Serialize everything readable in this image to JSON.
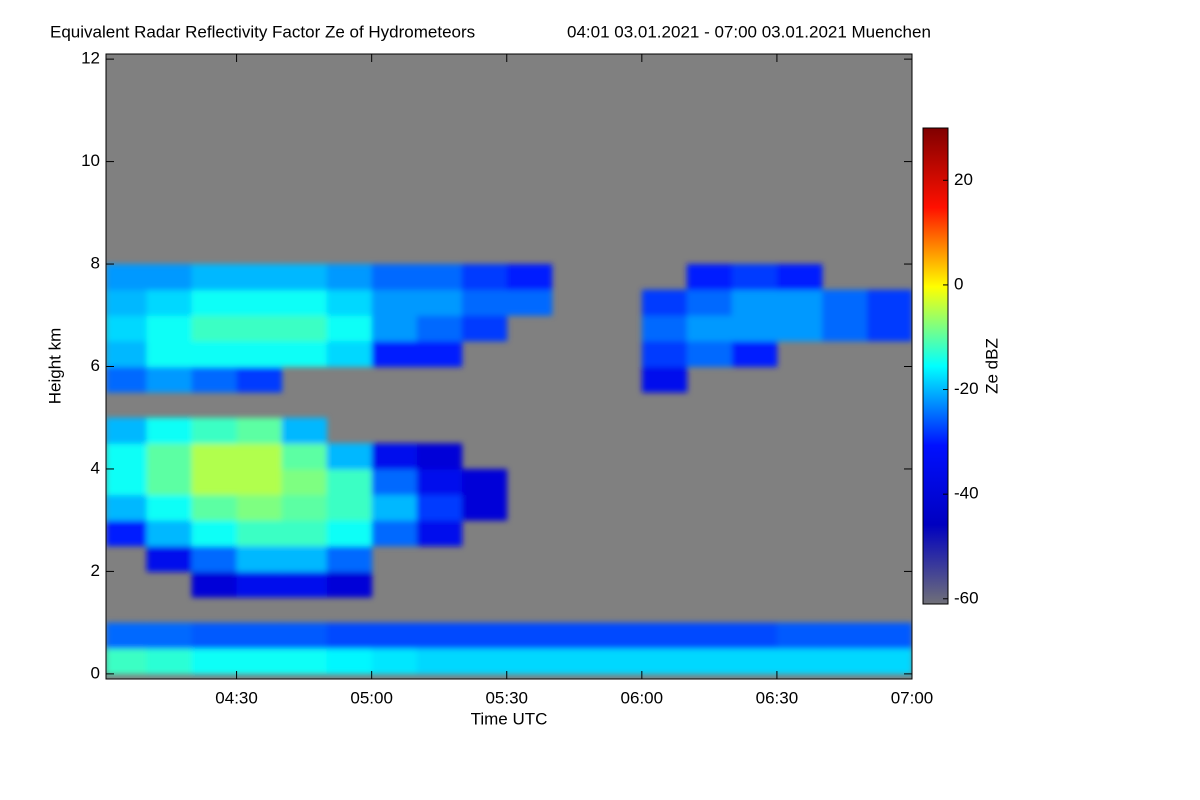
{
  "chart_data": {
    "type": "heatmap",
    "title": "Equivalent Radar Reflectivity Factor Ze of Hydrometeors",
    "subtitle": "04:01 03.01.2021 - 07:00 03.01.2021 Muenchen",
    "x_label": "Time UTC",
    "y_label": "Height km",
    "colorbar_label": "Ze dBZ",
    "x_bins": [
      241,
      250,
      260,
      270,
      280,
      290,
      300,
      310,
      320,
      330,
      340,
      350,
      360,
      370,
      380,
      390,
      400,
      410,
      420
    ],
    "y_bins": [
      0,
      0.5,
      1,
      1.5,
      2,
      2.5,
      3,
      3.5,
      4,
      4.5,
      5,
      5.5,
      6,
      6.5,
      7,
      7.5,
      8
    ],
    "z": [
      [
        -12,
        -13,
        -15,
        -15,
        -15,
        -16,
        -17,
        -18,
        -18,
        -18,
        -18,
        -18,
        -18,
        -18,
        -18,
        -18,
        -18,
        -18
      ],
      [
        -25,
        -25,
        -26,
        -26,
        -26,
        -27,
        -27,
        -27,
        -27,
        -27,
        -27,
        -27,
        -27,
        -27,
        -27,
        -26,
        -26,
        -26
      ],
      [
        null,
        null,
        null,
        null,
        null,
        null,
        null,
        null,
        null,
        null,
        null,
        null,
        null,
        null,
        null,
        null,
        null,
        null
      ],
      [
        null,
        null,
        -40,
        -35,
        -35,
        -40,
        null,
        null,
        null,
        null,
        null,
        null,
        null,
        null,
        null,
        null,
        null,
        null
      ],
      [
        null,
        -35,
        -25,
        -20,
        -20,
        -25,
        null,
        null,
        null,
        null,
        null,
        null,
        null,
        null,
        null,
        null,
        null,
        null
      ],
      [
        -30,
        -20,
        -15,
        -12,
        -12,
        -15,
        -25,
        -35,
        null,
        null,
        null,
        null,
        null,
        null,
        null,
        null,
        null,
        null
      ],
      [
        -20,
        -15,
        -10,
        -8,
        -10,
        -12,
        -20,
        -28,
        -40,
        null,
        null,
        null,
        null,
        null,
        null,
        null,
        null,
        null
      ],
      [
        -15,
        -10,
        -5,
        -5,
        -8,
        -12,
        -25,
        -35,
        -40,
        null,
        null,
        null,
        null,
        null,
        null,
        null,
        null,
        null
      ],
      [
        -15,
        -10,
        -5,
        -5,
        -10,
        -20,
        -35,
        -40,
        null,
        null,
        null,
        null,
        null,
        null,
        null,
        null,
        null,
        null
      ],
      [
        -20,
        -15,
        -12,
        -10,
        -20,
        null,
        null,
        null,
        null,
        null,
        null,
        null,
        null,
        null,
        null,
        null,
        null,
        null
      ],
      [
        null,
        null,
        null,
        null,
        null,
        null,
        null,
        null,
        null,
        null,
        null,
        null,
        null,
        null,
        null,
        null,
        null,
        null
      ],
      [
        -25,
        -22,
        -25,
        -28,
        null,
        null,
        null,
        null,
        null,
        null,
        null,
        null,
        -35,
        null,
        null,
        null,
        null,
        null
      ],
      [
        -20,
        -15,
        -15,
        -15,
        -15,
        -18,
        -30,
        -30,
        null,
        null,
        null,
        null,
        -28,
        -25,
        -30,
        null,
        null,
        null
      ],
      [
        -18,
        -15,
        -12,
        -12,
        -12,
        -15,
        -22,
        -25,
        -28,
        null,
        null,
        null,
        -25,
        -22,
        -22,
        -22,
        -25,
        -28
      ],
      [
        -20,
        -18,
        -15,
        -15,
        -15,
        -18,
        -22,
        -22,
        -25,
        -25,
        null,
        null,
        -28,
        -25,
        -22,
        -22,
        -25,
        -28
      ],
      [
        -22,
        -22,
        -20,
        -20,
        -20,
        -22,
        -25,
        -25,
        -28,
        -30,
        null,
        null,
        null,
        -30,
        -28,
        -30,
        null,
        null
      ]
    ],
    "xlim": [
      241,
      420
    ],
    "xticks": [
      {
        "value": 270,
        "label": "04:30"
      },
      {
        "value": 300,
        "label": "05:00"
      },
      {
        "value": 330,
        "label": "05:30"
      },
      {
        "value": 360,
        "label": "06:00"
      },
      {
        "value": 390,
        "label": "06:30"
      },
      {
        "value": 420,
        "label": "07:00"
      }
    ],
    "ylim": [
      -0.1,
      12.1
    ],
    "yticks": [
      0,
      2,
      4,
      6,
      8,
      10,
      12
    ],
    "zlim": [
      -61,
      30
    ],
    "zticks": [
      -60,
      -40,
      -20,
      0,
      20
    ],
    "colormap": [
      "#707078",
      "#0000c0",
      "#0010ff",
      "#00ffff",
      "#ffff00",
      "#ff1000",
      "#800000"
    ],
    "background_color": "#808080"
  }
}
